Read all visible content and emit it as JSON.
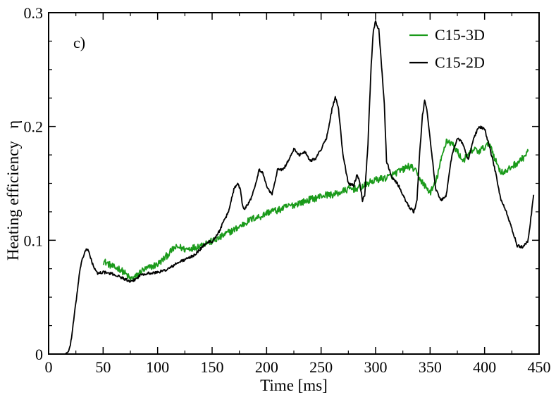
{
  "chart_data": {
    "type": "line",
    "title": "",
    "panel_label": "c)",
    "xlabel": "Time [ms]",
    "ylabel": "Heating efficiency   η",
    "xlim": [
      0,
      450
    ],
    "ylim": [
      0,
      0.3
    ],
    "xticks": [
      0,
      50,
      100,
      150,
      200,
      250,
      300,
      350,
      400,
      450
    ],
    "yticks": [
      0,
      0.1,
      0.2,
      0.3
    ],
    "xtick_labels": [
      "0",
      "50",
      "100",
      "150",
      "200",
      "250",
      "300",
      "350",
      "400",
      "450"
    ],
    "ytick_labels": [
      "0",
      "0.1",
      "0.2",
      "0.3"
    ],
    "grid": false,
    "legend_position": "top-right",
    "series": [
      {
        "name": "C15-3D",
        "color": "#1a9a1a",
        "noise": 0.003,
        "x": [
          50,
          55,
          60,
          65,
          70,
          75,
          80,
          85,
          90,
          95,
          100,
          105,
          110,
          115,
          120,
          125,
          130,
          135,
          140,
          145,
          150,
          155,
          160,
          165,
          170,
          175,
          180,
          185,
          190,
          195,
          200,
          205,
          210,
          215,
          220,
          225,
          230,
          235,
          240,
          245,
          250,
          255,
          260,
          265,
          270,
          275,
          280,
          285,
          290,
          295,
          300,
          305,
          310,
          315,
          320,
          325,
          330,
          335,
          340,
          345,
          350,
          355,
          360,
          365,
          370,
          375,
          380,
          385,
          390,
          395,
          400,
          405,
          410,
          415,
          420,
          425,
          430,
          435,
          440
        ],
        "y": [
          0.082,
          0.079,
          0.076,
          0.075,
          0.071,
          0.066,
          0.068,
          0.073,
          0.075,
          0.077,
          0.079,
          0.083,
          0.088,
          0.093,
          0.094,
          0.092,
          0.093,
          0.094,
          0.096,
          0.098,
          0.099,
          0.101,
          0.104,
          0.107,
          0.109,
          0.112,
          0.115,
          0.118,
          0.12,
          0.121,
          0.124,
          0.126,
          0.126,
          0.128,
          0.13,
          0.131,
          0.133,
          0.134,
          0.136,
          0.137,
          0.139,
          0.14,
          0.14,
          0.141,
          0.143,
          0.145,
          0.145,
          0.146,
          0.148,
          0.151,
          0.153,
          0.154,
          0.155,
          0.157,
          0.16,
          0.162,
          0.165,
          0.163,
          0.155,
          0.148,
          0.142,
          0.15,
          0.17,
          0.188,
          0.185,
          0.178,
          0.17,
          0.175,
          0.18,
          0.178,
          0.182,
          0.185,
          0.17,
          0.16,
          0.16,
          0.165,
          0.168,
          0.172,
          0.178
        ]
      },
      {
        "name": "C15-2D",
        "color": "#000000",
        "noise": 0.0012,
        "x": [
          10,
          15,
          18,
          20,
          22,
          25,
          28,
          30,
          33,
          35,
          37,
          40,
          43,
          45,
          50,
          55,
          60,
          65,
          70,
          75,
          80,
          85,
          90,
          95,
          100,
          105,
          110,
          115,
          120,
          125,
          130,
          135,
          140,
          145,
          150,
          155,
          160,
          165,
          170,
          173,
          176,
          178,
          180,
          185,
          190,
          193,
          196,
          200,
          205,
          210,
          215,
          220,
          225,
          230,
          235,
          240,
          245,
          250,
          255,
          260,
          263,
          266,
          270,
          275,
          280,
          283,
          285,
          288,
          290,
          293,
          296,
          298,
          300,
          303,
          305,
          308,
          310,
          315,
          320,
          325,
          330,
          335,
          338,
          340,
          343,
          345,
          347,
          350,
          355,
          360,
          365,
          370,
          375,
          380,
          385,
          390,
          395,
          400,
          405,
          410,
          415,
          420,
          425,
          430,
          435,
          440,
          445
        ],
        "y": [
          0.0,
          0.0,
          0.002,
          0.008,
          0.022,
          0.045,
          0.068,
          0.081,
          0.089,
          0.092,
          0.09,
          0.08,
          0.073,
          0.071,
          0.072,
          0.071,
          0.07,
          0.068,
          0.066,
          0.063,
          0.066,
          0.07,
          0.071,
          0.071,
          0.072,
          0.073,
          0.075,
          0.078,
          0.081,
          0.083,
          0.085,
          0.088,
          0.093,
          0.098,
          0.099,
          0.105,
          0.115,
          0.125,
          0.145,
          0.15,
          0.145,
          0.13,
          0.128,
          0.135,
          0.15,
          0.162,
          0.16,
          0.148,
          0.14,
          0.162,
          0.162,
          0.17,
          0.18,
          0.175,
          0.178,
          0.17,
          0.172,
          0.18,
          0.19,
          0.215,
          0.226,
          0.215,
          0.175,
          0.15,
          0.148,
          0.158,
          0.153,
          0.135,
          0.14,
          0.185,
          0.255,
          0.285,
          0.292,
          0.285,
          0.26,
          0.22,
          0.17,
          0.155,
          0.15,
          0.14,
          0.13,
          0.125,
          0.135,
          0.17,
          0.21,
          0.222,
          0.215,
          0.19,
          0.145,
          0.135,
          0.14,
          0.175,
          0.19,
          0.185,
          0.17,
          0.19,
          0.2,
          0.198,
          0.18,
          0.16,
          0.135,
          0.125,
          0.11,
          0.095,
          0.094,
          0.1,
          0.14
        ]
      }
    ]
  }
}
